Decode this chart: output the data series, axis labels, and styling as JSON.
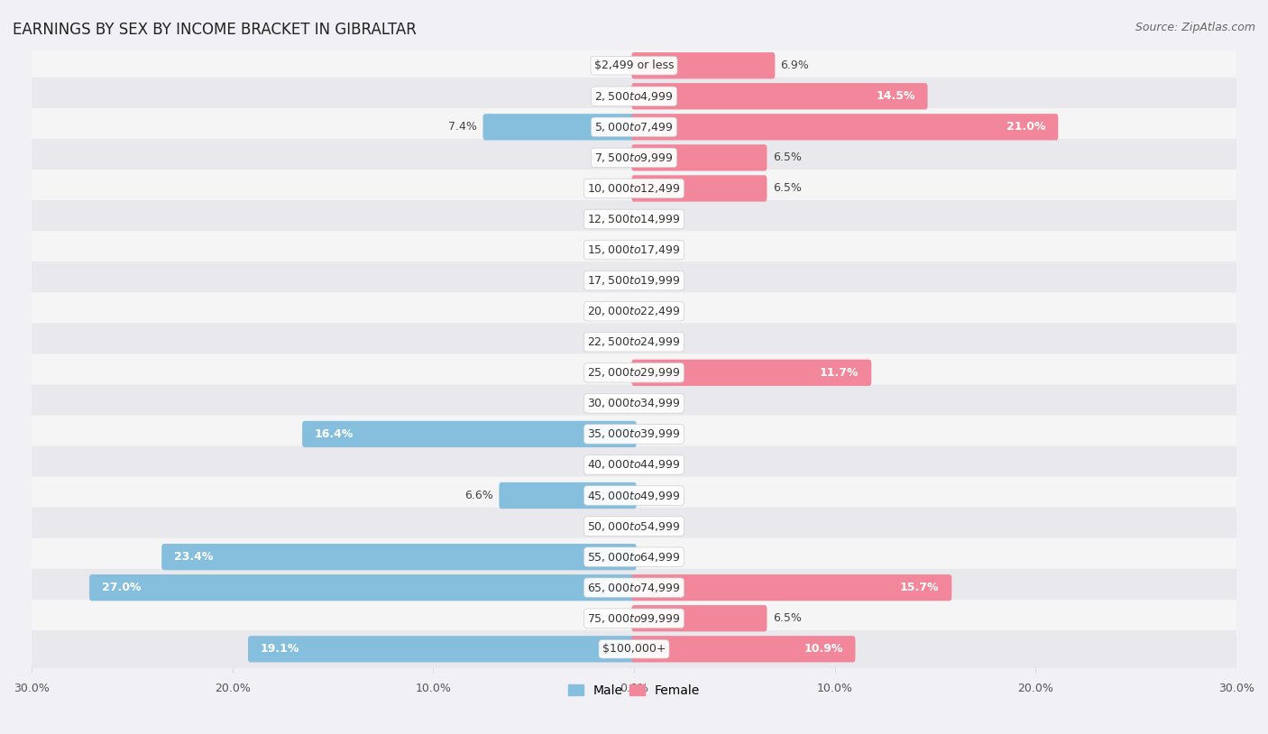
{
  "title": "EARNINGS BY SEX BY INCOME BRACKET IN GIBRALTAR",
  "source": "Source: ZipAtlas.com",
  "categories": [
    "$2,499 or less",
    "$2,500 to $4,999",
    "$5,000 to $7,499",
    "$7,500 to $9,999",
    "$10,000 to $12,499",
    "$12,500 to $14,999",
    "$15,000 to $17,499",
    "$17,500 to $19,999",
    "$20,000 to $22,499",
    "$22,500 to $24,999",
    "$25,000 to $29,999",
    "$30,000 to $34,999",
    "$35,000 to $39,999",
    "$40,000 to $44,999",
    "$45,000 to $49,999",
    "$50,000 to $54,999",
    "$55,000 to $64,999",
    "$65,000 to $74,999",
    "$75,000 to $99,999",
    "$100,000+"
  ],
  "male": [
    0.0,
    0.0,
    7.4,
    0.0,
    0.0,
    0.0,
    0.0,
    0.0,
    0.0,
    0.0,
    0.0,
    0.0,
    16.4,
    0.0,
    6.6,
    0.0,
    23.4,
    27.0,
    0.0,
    19.1
  ],
  "female": [
    6.9,
    14.5,
    21.0,
    6.5,
    6.5,
    0.0,
    0.0,
    0.0,
    0.0,
    0.0,
    11.7,
    0.0,
    0.0,
    0.0,
    0.0,
    0.0,
    0.0,
    15.7,
    6.5,
    10.9
  ],
  "male_color": "#85bfdd",
  "female_color": "#f2869a",
  "row_color_odd": "#f5f5f5",
  "row_color_even": "#e8e8ed",
  "background_color": "#f0f0f5",
  "axis_max": 30.0,
  "title_fontsize": 12,
  "source_fontsize": 9,
  "label_fontsize": 9,
  "category_fontsize": 9
}
